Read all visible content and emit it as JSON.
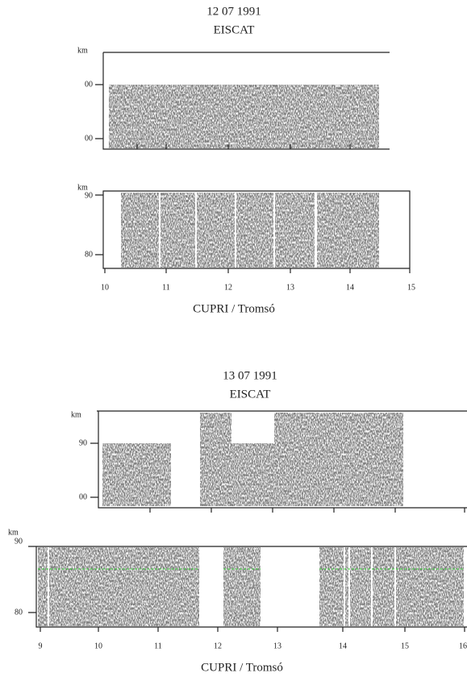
{
  "figures": [
    {
      "date": "12 07 1991",
      "title": "EISCAT",
      "eiscat_y_labels": [
        "km",
        "00",
        "00"
      ],
      "cupri_y_labels": [
        "km",
        "90",
        "80"
      ],
      "x_labels": [
        "10",
        "11",
        "12",
        "13",
        "14",
        "15"
      ],
      "caption": "CUPRI / Tromsó"
    },
    {
      "date": "13 07 1991",
      "title": "EISCAT",
      "eiscat_y_labels": [
        "km",
        "90",
        "00"
      ],
      "cupri_y_labels": [
        "km",
        "90",
        "80"
      ],
      "x_labels": [
        "9",
        "10",
        "11",
        "12",
        "13",
        "14",
        "15",
        "16"
      ],
      "caption": "CUPRI / Tromsó"
    }
  ]
}
